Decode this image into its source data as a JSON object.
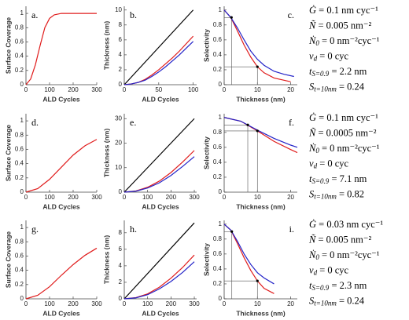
{
  "chart_data": [
    {
      "type": "line",
      "panel_label": "a.",
      "label_position": "top-left",
      "xlabel": "ALD Cycles",
      "ylabel": "Surface Coverage",
      "xlim": [
        0,
        300
      ],
      "ylim": [
        0,
        1.1
      ],
      "xticks": [
        0,
        100,
        200,
        300
      ],
      "yticks": [
        0,
        0.2,
        0.4,
        0.6,
        0.8,
        1
      ],
      "series": [
        {
          "color": "#e01b1b",
          "x": [
            0,
            20,
            40,
            60,
            80,
            100,
            120,
            150,
            200,
            250,
            300
          ],
          "values": [
            0,
            0.08,
            0.28,
            0.55,
            0.8,
            0.93,
            0.98,
            1,
            1,
            1,
            1
          ]
        }
      ]
    },
    {
      "type": "line",
      "panel_label": "b.",
      "label_position": "top-left",
      "xlabel": "ALD Cycles",
      "ylabel": "Thickness (nm)",
      "xlim": [
        0,
        105
      ],
      "ylim": [
        0,
        10.5
      ],
      "xticks": [
        0,
        50,
        100
      ],
      "yticks": [
        0,
        2,
        4,
        6,
        8,
        10
      ],
      "series": [
        {
          "color": "#000000",
          "x": [
            0,
            100
          ],
          "values": [
            0,
            10
          ]
        },
        {
          "color": "#e01b1b",
          "x": [
            0,
            10,
            20,
            30,
            40,
            50,
            60,
            70,
            80,
            90,
            100
          ],
          "values": [
            0,
            0.1,
            0.3,
            0.7,
            1.3,
            2.0,
            2.8,
            3.6,
            4.5,
            5.5,
            6.5
          ]
        },
        {
          "color": "#2323c8",
          "x": [
            0,
            10,
            20,
            30,
            40,
            50,
            60,
            70,
            80,
            90,
            100
          ],
          "values": [
            0,
            0.1,
            0.3,
            0.6,
            1.1,
            1.7,
            2.4,
            3.2,
            4.0,
            4.9,
            5.8
          ]
        }
      ]
    },
    {
      "type": "line",
      "panel_label": "c.",
      "label_position": "top-right",
      "xlabel": "Thickness (nm)",
      "ylabel": "Selectivity",
      "xlim": [
        0,
        22
      ],
      "ylim": [
        0,
        1.05
      ],
      "xticks": [
        0,
        10,
        20
      ],
      "yticks": [
        0,
        0.2,
        0.4,
        0.6,
        0.8,
        1
      ],
      "series": [
        {
          "color": "#e01b1b",
          "x": [
            0,
            2,
            4,
            6,
            8,
            10,
            12,
            15,
            18,
            20
          ],
          "values": [
            1,
            0.9,
            0.72,
            0.53,
            0.37,
            0.24,
            0.16,
            0.09,
            0.06,
            0.04
          ]
        },
        {
          "color": "#2323c8",
          "x": [
            0,
            2,
            4,
            6,
            8,
            10,
            12,
            15,
            18,
            21
          ],
          "values": [
            1,
            0.9,
            0.76,
            0.6,
            0.45,
            0.34,
            0.26,
            0.18,
            0.14,
            0.11
          ]
        }
      ],
      "reference_points": [
        {
          "x": 2.2,
          "y": 0.9
        },
        {
          "x": 10,
          "y": 0.24
        }
      ]
    },
    {
      "type": "line",
      "panel_label": "d.",
      "label_position": "top-left",
      "xlabel": "ALD Cycles",
      "ylabel": "Surface Coverage",
      "xlim": [
        0,
        300
      ],
      "ylim": [
        0,
        1.1
      ],
      "xticks": [
        0,
        100,
        200,
        300
      ],
      "yticks": [
        0,
        0.2,
        0.4,
        0.6,
        0.8,
        1
      ],
      "series": [
        {
          "color": "#e01b1b",
          "x": [
            0,
            50,
            100,
            150,
            200,
            250,
            300
          ],
          "values": [
            0,
            0.05,
            0.18,
            0.35,
            0.52,
            0.65,
            0.74
          ]
        }
      ]
    },
    {
      "type": "line",
      "panel_label": "e.",
      "label_position": "top-left",
      "xlabel": "ALD Cycles",
      "ylabel": "Thickness (nm)",
      "xlim": [
        0,
        310
      ],
      "ylim": [
        0,
        32
      ],
      "xticks": [
        0,
        100,
        200,
        300
      ],
      "yticks": [
        0,
        10,
        20,
        30
      ],
      "series": [
        {
          "color": "#000000",
          "x": [
            0,
            300
          ],
          "values": [
            0,
            30
          ]
        },
        {
          "color": "#e01b1b",
          "x": [
            0,
            50,
            100,
            150,
            200,
            250,
            300
          ],
          "values": [
            0,
            0.5,
            2,
            4.5,
            8,
            12.3,
            17
          ]
        },
        {
          "color": "#2323c8",
          "x": [
            0,
            50,
            100,
            150,
            200,
            250,
            300
          ],
          "values": [
            0,
            0.4,
            1.7,
            3.8,
            6.8,
            10.5,
            14.5
          ]
        }
      ]
    },
    {
      "type": "line",
      "panel_label": "f.",
      "label_position": "top-right",
      "xlabel": "Thickness (nm)",
      "ylabel": "Selectivity",
      "xlim": [
        0,
        22
      ],
      "ylim": [
        0,
        1.05
      ],
      "xticks": [
        0,
        10,
        20
      ],
      "yticks": [
        0,
        0.2,
        0.4,
        0.6,
        0.8,
        1
      ],
      "series": [
        {
          "color": "#e01b1b",
          "x": [
            0,
            5,
            10,
            15,
            20,
            22
          ],
          "values": [
            1,
            0.95,
            0.82,
            0.68,
            0.57,
            0.53
          ]
        },
        {
          "color": "#2323c8",
          "x": [
            0,
            5,
            10,
            15,
            20,
            22
          ],
          "values": [
            1,
            0.95,
            0.83,
            0.72,
            0.63,
            0.6
          ]
        }
      ],
      "reference_points": [
        {
          "x": 7.1,
          "y": 0.9
        },
        {
          "x": 10,
          "y": 0.82
        }
      ]
    },
    {
      "type": "line",
      "panel_label": "g.",
      "label_position": "top-left",
      "xlabel": "ALD Cycles",
      "ylabel": "Surface Coverage",
      "xlim": [
        0,
        300
      ],
      "ylim": [
        0,
        1.1
      ],
      "xticks": [
        0,
        100,
        200,
        300
      ],
      "yticks": [
        0,
        0.2,
        0.4,
        0.6,
        0.8,
        1
      ],
      "series": [
        {
          "color": "#e01b1b",
          "x": [
            0,
            50,
            100,
            150,
            200,
            250,
            300
          ],
          "values": [
            0,
            0.05,
            0.17,
            0.33,
            0.48,
            0.61,
            0.71
          ]
        }
      ]
    },
    {
      "type": "line",
      "panel_label": "h.",
      "label_position": "top-left",
      "xlabel": "ALD Cycles",
      "ylabel": "Thickness (nm)",
      "xlim": [
        0,
        310
      ],
      "ylim": [
        0,
        9.5
      ],
      "xticks": [
        0,
        100,
        200,
        300
      ],
      "yticks": [
        0,
        2,
        4,
        6,
        8
      ],
      "series": [
        {
          "color": "#000000",
          "x": [
            0,
            300
          ],
          "values": [
            0,
            9.2
          ]
        },
        {
          "color": "#e01b1b",
          "x": [
            0,
            50,
            100,
            150,
            200,
            250,
            300
          ],
          "values": [
            0,
            0.15,
            0.6,
            1.4,
            2.5,
            3.8,
            5.3
          ]
        },
        {
          "color": "#2323c8",
          "x": [
            0,
            50,
            100,
            150,
            200,
            250,
            300
          ],
          "values": [
            0,
            0.12,
            0.5,
            1.2,
            2.1,
            3.2,
            4.5
          ]
        }
      ]
    },
    {
      "type": "line",
      "panel_label": "i.",
      "label_position": "top-right",
      "xlabel": "Thickness (nm)",
      "ylabel": "Selectivity",
      "xlim": [
        0,
        22
      ],
      "ylim": [
        0,
        1.05
      ],
      "xticks": [
        0,
        10,
        20
      ],
      "yticks": [
        0,
        0.2,
        0.4,
        0.6,
        0.8,
        1
      ],
      "series": [
        {
          "color": "#e01b1b",
          "x": [
            0,
            2,
            4,
            6,
            8,
            10,
            12,
            15
          ],
          "values": [
            1,
            0.92,
            0.74,
            0.55,
            0.38,
            0.24,
            0.14,
            0.07
          ]
        },
        {
          "color": "#2323c8",
          "x": [
            0,
            2,
            4,
            6,
            8,
            10,
            12,
            15
          ],
          "values": [
            1,
            0.92,
            0.77,
            0.6,
            0.46,
            0.35,
            0.28,
            0.2
          ]
        }
      ],
      "reference_points": [
        {
          "x": 2.3,
          "y": 0.9
        },
        {
          "x": 10,
          "y": 0.24
        }
      ]
    }
  ],
  "parameter_sets": [
    [
      {
        "symbol": "Ġ",
        "text": " = 0.1 nm cyc⁻¹"
      },
      {
        "symbol": "Ñ",
        "text": " = 0.005 nm⁻²"
      },
      {
        "symbol": "Ṅ",
        "sub": "0",
        "text": " = 0 nm⁻²cyc⁻¹"
      },
      {
        "symbol": "ν",
        "sub": "d",
        "text": " = 0 cyc"
      },
      {
        "symbol": "t",
        "sub": "S=0.9",
        "text": " = 2.2 nm"
      },
      {
        "symbol": "S",
        "sub": "t=10nm",
        "text": " = 0.24"
      }
    ],
    [
      {
        "symbol": "Ġ",
        "text": " = 0.1 nm cyc⁻¹"
      },
      {
        "symbol": "Ñ",
        "text": " = 0.0005 nm⁻²"
      },
      {
        "symbol": "Ṅ",
        "sub": "0",
        "text": " = 0 nm⁻²cyc⁻¹"
      },
      {
        "symbol": "ν",
        "sub": "d",
        "text": " = 0 cyc"
      },
      {
        "symbol": "t",
        "sub": "S=0.9",
        "text": " = 7.1 nm"
      },
      {
        "symbol": "S",
        "sub": "t=10nm",
        "text": " = 0.82"
      }
    ],
    [
      {
        "symbol": "Ġ",
        "text": " = 0.03 nm cyc⁻¹"
      },
      {
        "symbol": "Ñ",
        "text": " = 0.005 nm⁻²"
      },
      {
        "symbol": "Ṅ",
        "sub": "0",
        "text": " = 0 nm⁻²cyc⁻¹"
      },
      {
        "symbol": "ν",
        "sub": "d",
        "text": " = 0 cyc"
      },
      {
        "symbol": "t",
        "sub": "S=0.9",
        "text": " = 2.3 nm"
      },
      {
        "symbol": "S",
        "sub": "t=10nm",
        "text": " = 0.24"
      }
    ]
  ]
}
